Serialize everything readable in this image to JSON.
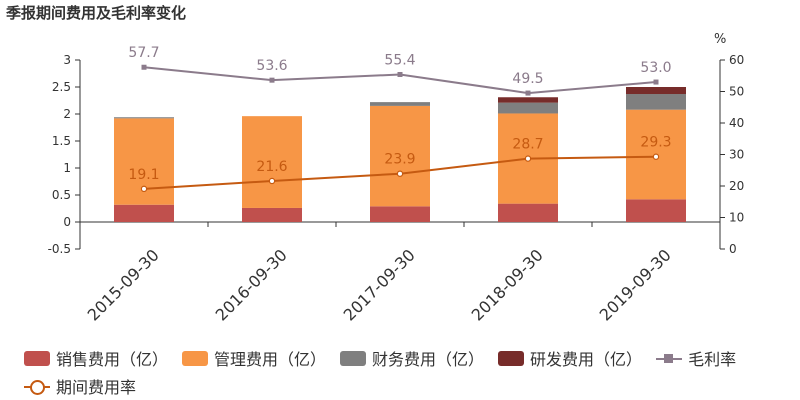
{
  "chart_data": {
    "type": "bar",
    "title": "季报期间费用及毛利率变化",
    "categories": [
      "2015-09-30",
      "2016-09-30",
      "2017-09-30",
      "2018-09-30",
      "2019-09-30"
    ],
    "stacked": true,
    "left_axis": {
      "ylim": [
        -0.5,
        3
      ],
      "ticks": [
        "-0.5",
        "0",
        "0.5",
        "1",
        "1.5",
        "2",
        "2.5",
        "3"
      ]
    },
    "right_axis": {
      "label": "%",
      "ylim": [
        0,
        60
      ],
      "ticks": [
        "0",
        "10",
        "20",
        "30",
        "40",
        "50",
        "60"
      ]
    },
    "grid": false,
    "legend_position": "bottom",
    "series": [
      {
        "name": "销售费用（亿）",
        "kind": "bar",
        "axis": "left",
        "color": "#c0504d",
        "values": [
          0.32,
          0.26,
          0.29,
          0.34,
          0.42
        ]
      },
      {
        "name": "管理费用（亿）",
        "kind": "bar",
        "axis": "left",
        "color": "#f79646",
        "values": [
          1.6,
          1.7,
          1.86,
          1.67,
          1.66
        ]
      },
      {
        "name": "财务费用（亿）",
        "kind": "bar",
        "axis": "left",
        "color": "#7f7f7f",
        "values": [
          0.02,
          0.0,
          0.07,
          0.2,
          0.29
        ]
      },
      {
        "name": "研发费用（亿）",
        "kind": "bar",
        "axis": "left",
        "color": "#772c2a",
        "values": [
          0.0,
          0.0,
          0.0,
          0.1,
          0.13
        ]
      },
      {
        "name": "毛利率",
        "kind": "line",
        "axis": "right",
        "color": "#8b7b8b",
        "marker": "square",
        "values": [
          57.7,
          53.6,
          55.4,
          49.5,
          53.0
        ],
        "labels": [
          "57.7",
          "53.6",
          "55.4",
          "49.5",
          "53.0"
        ]
      },
      {
        "name": "期间费用率",
        "kind": "line",
        "axis": "right",
        "color": "#c55a11",
        "marker": "circle",
        "values": [
          19.1,
          21.6,
          23.9,
          28.7,
          29.3
        ],
        "labels": [
          "19.1",
          "21.6",
          "23.9",
          "28.7",
          "29.3"
        ]
      }
    ]
  }
}
